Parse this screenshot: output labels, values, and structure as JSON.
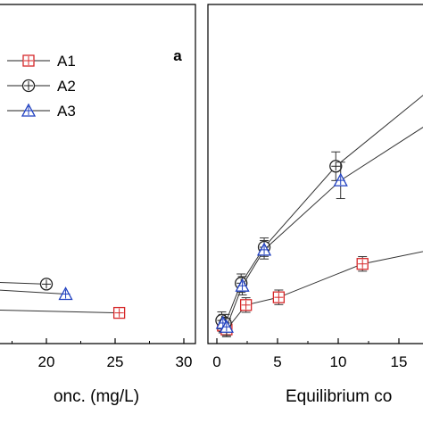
{
  "chart_data": [
    {
      "type": "line",
      "panel_label": "a",
      "xlabel": "onc. (mg/L)",
      "xticks": [
        "20",
        "25",
        "30"
      ],
      "legend": [
        "A1",
        "A2",
        "A3"
      ],
      "legend_position": "top-right",
      "series": [
        {
          "name": "A1",
          "color": "#d62728",
          "marker": "square",
          "x": [
            25.3
          ],
          "y": [
            0.62
          ],
          "tail_y": 0.68
        },
        {
          "name": "A2",
          "color": "#222222",
          "marker": "circle",
          "x": [
            20.0
          ],
          "y": [
            1.2
          ],
          "tail_y": 1.24
        },
        {
          "name": "A3",
          "color": "#1f3fbf",
          "marker": "triangle",
          "x": [
            21.4
          ],
          "y": [
            1.0
          ],
          "tail_y": 1.09
        }
      ]
    },
    {
      "type": "line",
      "xlabel": "Equilibrium co",
      "xticks": [
        "0",
        "5",
        "10",
        "15"
      ],
      "series": [
        {
          "name": "A1",
          "color": "#d62728",
          "marker": "square",
          "x": [
            0.5,
            0.8,
            2.4,
            5.1,
            12.0
          ],
          "y": [
            0.28,
            0.22,
            0.6,
            0.72,
            1.24
          ],
          "err": [
            0.03,
            0.03,
            0.03,
            0.03,
            0.03
          ],
          "tail_y": 1.45
        },
        {
          "name": "A2",
          "color": "#222222",
          "marker": "circle",
          "x": [
            0.4,
            0.7,
            2.0,
            3.9,
            9.8
          ],
          "y": [
            0.36,
            0.32,
            0.94,
            1.5,
            2.76
          ],
          "err": [
            0.05,
            0.05,
            0.06,
            0.06,
            0.14
          ],
          "tail_y": 3.93
        },
        {
          "name": "A3",
          "color": "#1f3fbf",
          "marker": "triangle",
          "x": [
            0.5,
            0.8,
            2.1,
            3.9,
            10.2
          ],
          "y": [
            0.32,
            0.26,
            0.9,
            1.46,
            2.54
          ],
          "err": [
            0.05,
            0.05,
            0.06,
            0.06,
            0.2
          ],
          "tail_y": 3.42
        }
      ]
    }
  ]
}
